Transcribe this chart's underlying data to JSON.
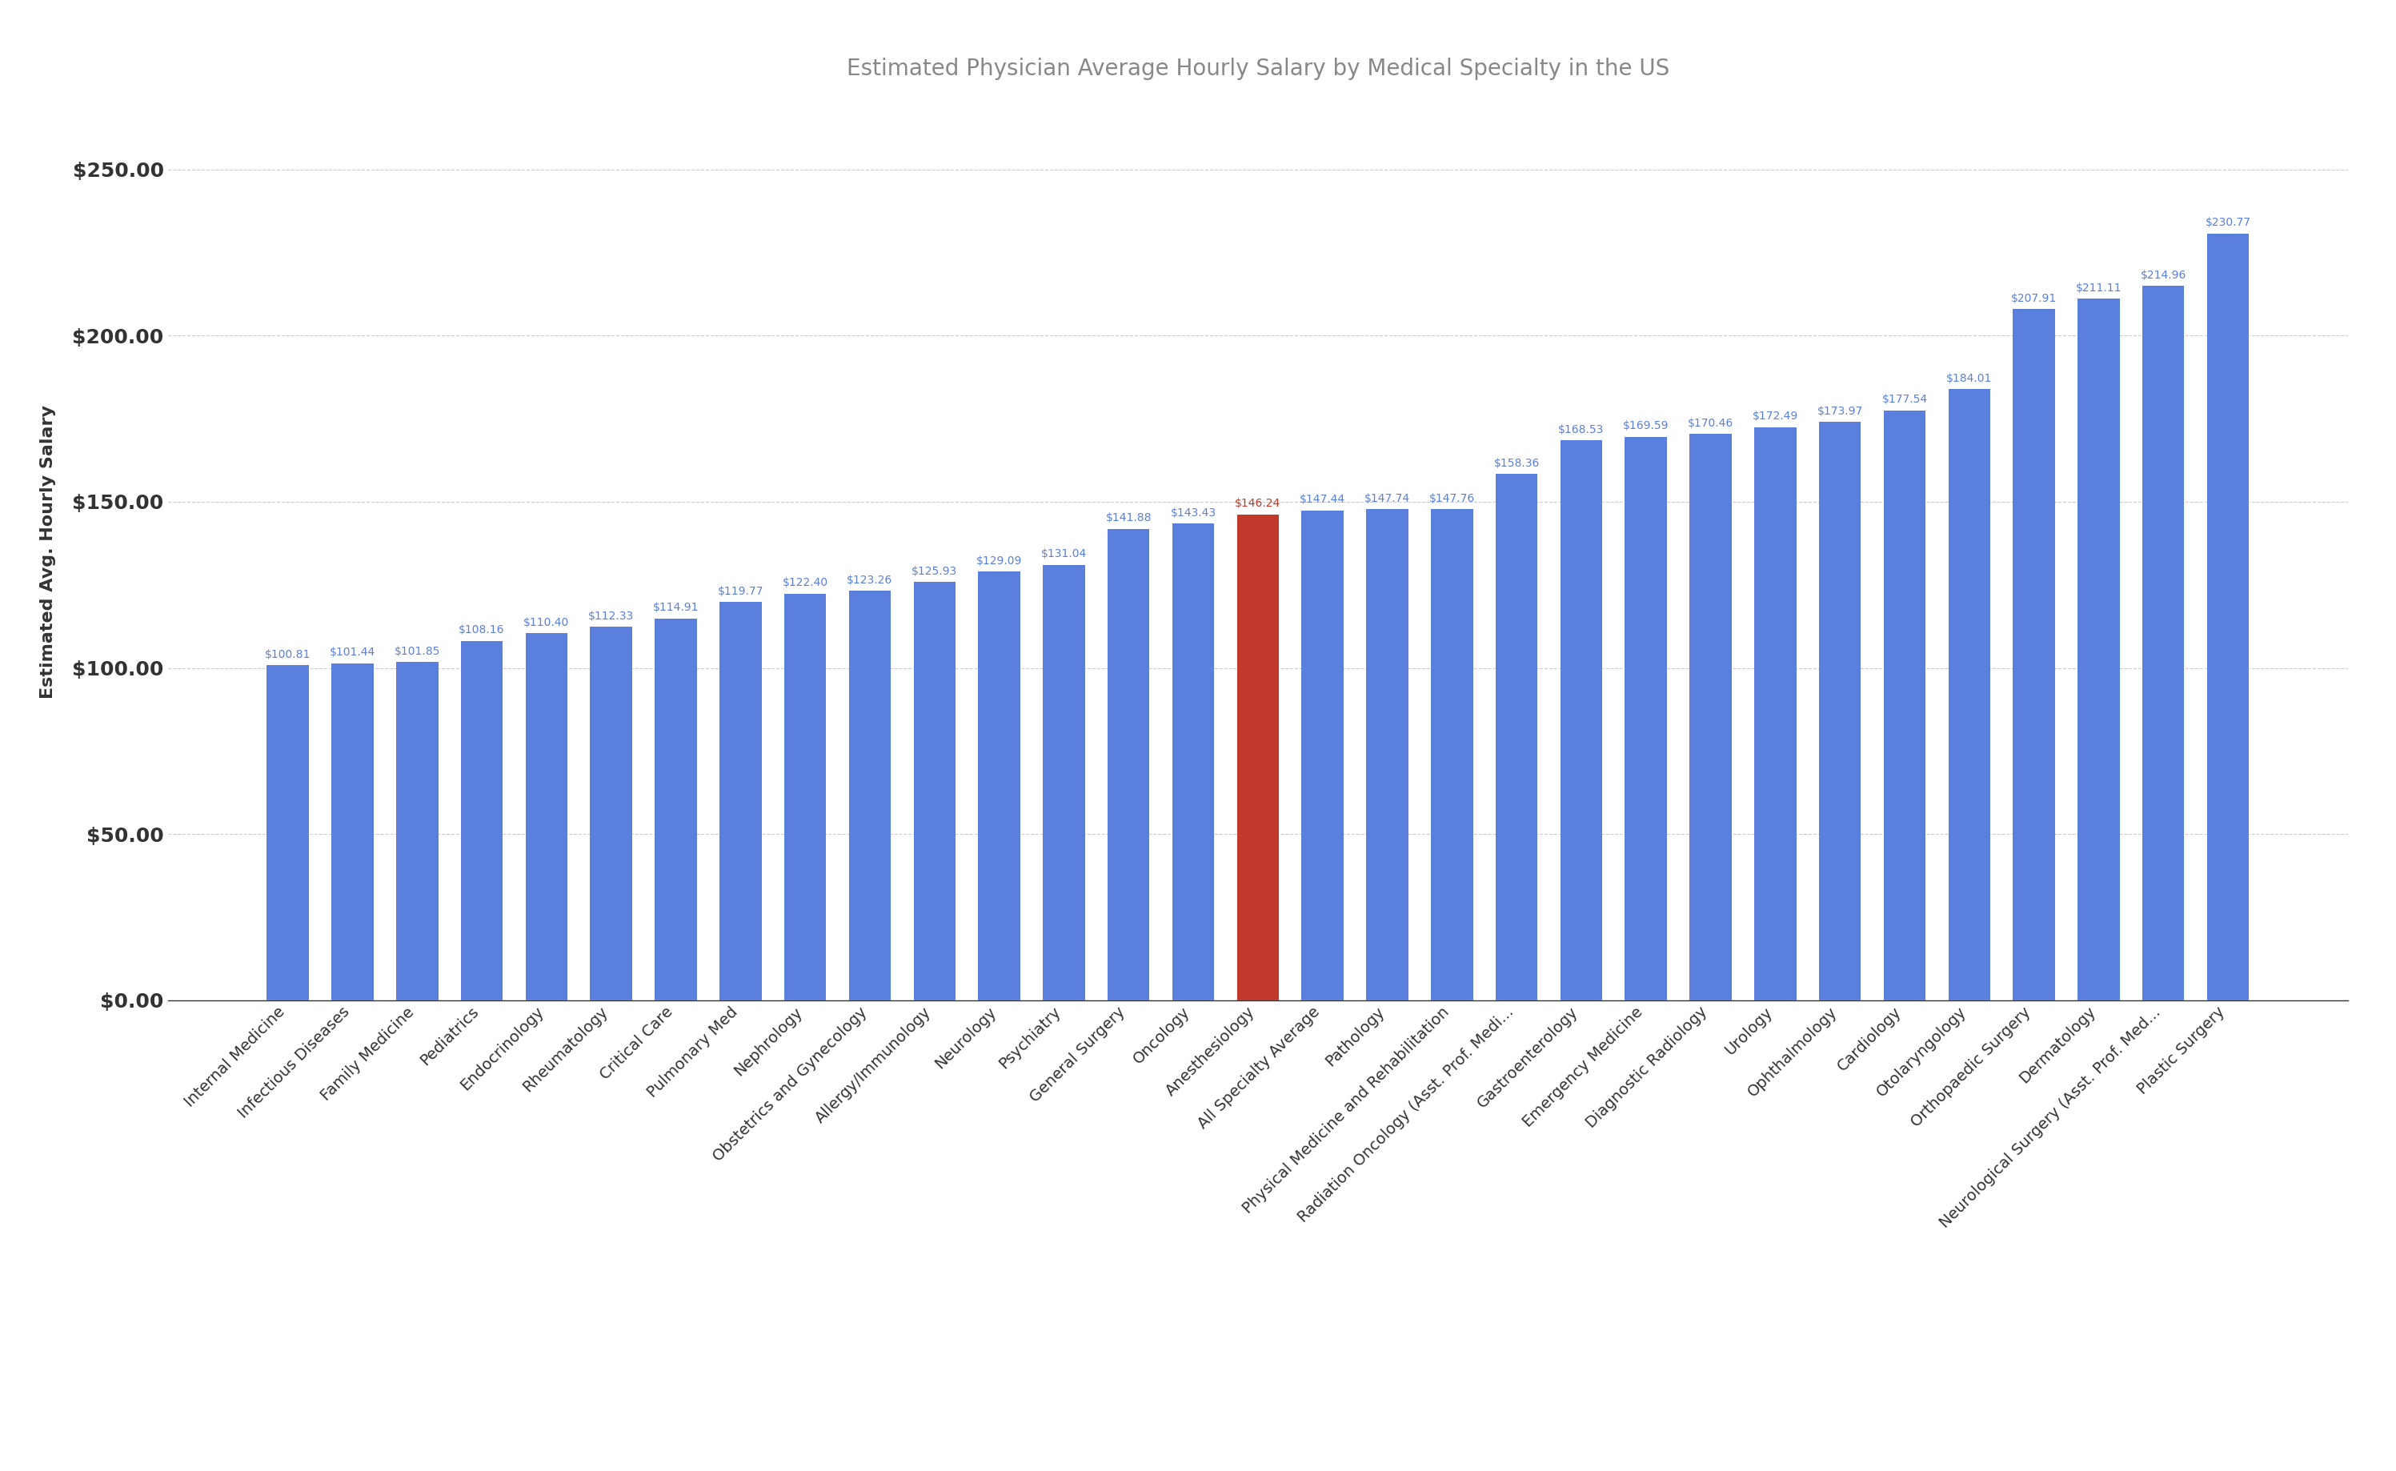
{
  "title": "Estimated Physician Average Hourly Salary by Medical Specialty in the US",
  "ylabel": "Estimated Avg. Hourly Salary",
  "categories": [
    "Internal Medicine",
    "Infectious Diseases",
    "Family Medicine",
    "Pediatrics",
    "Endocrinology",
    "Rheumatology",
    "Critical Care",
    "Pulmonary Med",
    "Nephrology",
    "Obstetrics and Gynecology",
    "Allergy/Immunology",
    "Neurology",
    "Psychiatry",
    "General Surgery",
    "Oncology",
    "Anesthesiology",
    "All Specialty Average",
    "Pathology",
    "Physical Medicine and Rehabilitation",
    "Radiation Oncology (Asst. Prof. Medi...",
    "Gastroenterology",
    "Emergency Medicine",
    "Diagnostic Radiology",
    "Urology",
    "Ophthalmology",
    "Cardiology",
    "Otolaryngology",
    "Orthopaedic Surgery",
    "Dermatology",
    "Neurological Surgery (Asst. Prof. Med...",
    "Plastic Surgery"
  ],
  "values": [
    100.81,
    101.44,
    101.85,
    108.16,
    110.4,
    112.33,
    114.91,
    119.77,
    122.4,
    123.26,
    125.93,
    129.09,
    131.04,
    141.88,
    143.43,
    146.24,
    147.44,
    147.74,
    147.76,
    158.36,
    168.53,
    169.59,
    170.46,
    172.49,
    173.97,
    177.54,
    184.01,
    207.91,
    211.11,
    214.96,
    230.77
  ],
  "bar_color_default": "#5b7fdd",
  "bar_color_highlight": "#c0392b",
  "highlight_index": 15,
  "value_label_color_default": "#5b7fdd",
  "value_label_color_highlight": "#c0392b",
  "background_color": "#ffffff",
  "grid_color": "#cccccc",
  "grid_style": "--",
  "title_color": "#888888",
  "ylabel_color": "#333333",
  "ytick_label_color": "#333333",
  "xtick_label_color": "#333333",
  "ylim": [
    0,
    270
  ],
  "yticks": [
    0,
    50,
    100,
    150,
    200,
    250
  ],
  "ytick_labels": [
    "$0.00",
    "$50.00",
    "$100.00",
    "$150.00",
    "$200.00",
    "$250.00"
  ],
  "title_fontsize": 20,
  "ylabel_fontsize": 16,
  "ytick_fontsize": 18,
  "xtick_fontsize": 14,
  "value_label_fontsize": 10,
  "bar_width": 0.65
}
